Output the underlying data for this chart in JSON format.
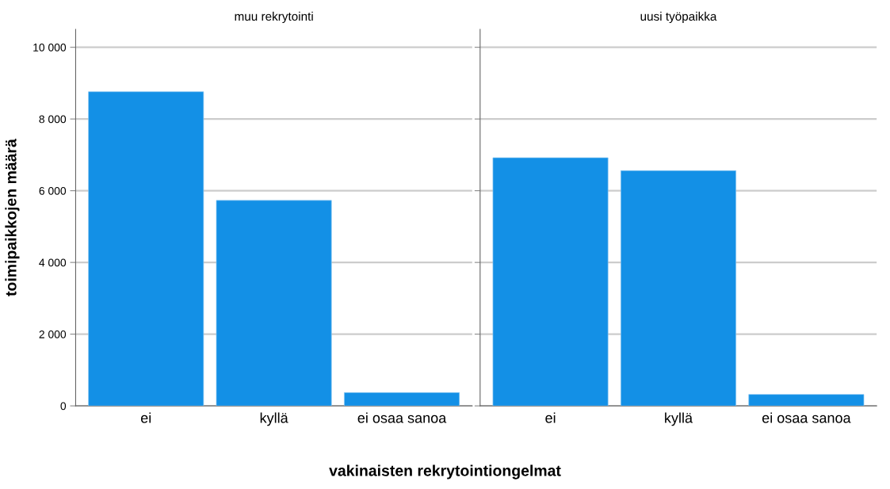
{
  "chart_data": [
    {
      "type": "bar",
      "title": "muu rekrytointi",
      "xlabel": "vakinaisten rekrytointiongelmat",
      "ylabel": "toimipaikkojen määrä",
      "categories": [
        "ei",
        "kyllä",
        "ei osaa sanoa"
      ],
      "values": [
        8760,
        5730,
        370
      ],
      "color": "#1390e6",
      "ylim": [
        0,
        10500
      ],
      "yticks": [
        0,
        {
          "value": 2000,
          "label": "2 000"
        },
        {
          "value": 4000,
          "label": "4 000"
        },
        {
          "value": 6000,
          "label": "6 000"
        },
        {
          "value": 8000,
          "label": "8 000"
        },
        {
          "value": 10000,
          "label": "10 000"
        }
      ],
      "grid": "y"
    },
    {
      "type": "bar",
      "title": "uusi työpaikka",
      "categories": [
        "ei",
        "kyllä",
        "ei osaa sanoa"
      ],
      "values": [
        6920,
        6560,
        320
      ],
      "color": "#1390e6",
      "ylim": [
        0,
        10500
      ],
      "yticks": [
        0,
        2000,
        4000,
        6000,
        8000,
        10000
      ],
      "grid": "y",
      "tick_labels": "x"
    }
  ]
}
